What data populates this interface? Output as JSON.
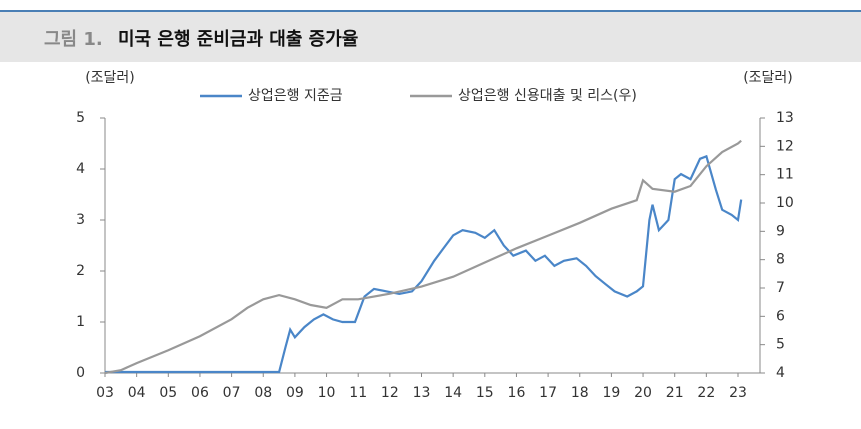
{
  "chart_data": {
    "type": "line",
    "figure_label": "그림 1.",
    "title": "미국 은행 준비금과 대출 증가율",
    "y_label": "(조달러)",
    "y2_label": "(조달러)",
    "xlim": [
      3,
      23
    ],
    "xticks": [
      {
        "value": 3,
        "label": "03"
      },
      {
        "value": 4,
        "label": "04"
      },
      {
        "value": 5,
        "label": "05"
      },
      {
        "value": 6,
        "label": "06"
      },
      {
        "value": 7,
        "label": "07"
      },
      {
        "value": 8,
        "label": "08"
      },
      {
        "value": 9,
        "label": "09"
      },
      10,
      11,
      12,
      13,
      14,
      15,
      16,
      17,
      18,
      19,
      20,
      21,
      22,
      23
    ],
    "ylim": [
      0,
      5
    ],
    "yticks": [
      0,
      1,
      2,
      3,
      4,
      5
    ],
    "y2lim": [
      4,
      13
    ],
    "y2ticks": [
      4,
      5,
      6,
      7,
      8,
      9,
      10,
      11,
      12,
      13
    ],
    "series": [
      {
        "name": "상업은행 지준금",
        "color": "#4a86c8",
        "x": [
          3,
          5,
          7,
          8.5,
          8.7,
          8.85,
          9.0,
          9.3,
          9.6,
          9.9,
          10.2,
          10.5,
          10.9,
          11.2,
          11.5,
          11.9,
          12.3,
          12.7,
          13.0,
          13.4,
          13.7,
          14.0,
          14.3,
          14.7,
          15.0,
          15.3,
          15.6,
          15.9,
          16.3,
          16.6,
          16.9,
          17.2,
          17.5,
          17.9,
          18.2,
          18.5,
          18.8,
          19.1,
          19.5,
          19.8,
          20.0,
          20.2,
          20.3,
          20.5,
          20.8,
          21.0,
          21.2,
          21.5,
          21.8,
          22.0,
          22.3,
          22.5,
          22.8,
          23.0,
          23.1
        ],
        "values": [
          0.02,
          0.02,
          0.02,
          0.02,
          0.5,
          0.85,
          0.7,
          0.9,
          1.05,
          1.15,
          1.05,
          1.0,
          1.0,
          1.5,
          1.65,
          1.6,
          1.55,
          1.6,
          1.8,
          2.2,
          2.45,
          2.7,
          2.8,
          2.75,
          2.65,
          2.8,
          2.5,
          2.3,
          2.4,
          2.2,
          2.3,
          2.1,
          2.2,
          2.25,
          2.1,
          1.9,
          1.75,
          1.6,
          1.5,
          1.6,
          1.7,
          3.0,
          3.3,
          2.8,
          3.0,
          3.8,
          3.9,
          3.8,
          4.2,
          4.25,
          3.6,
          3.2,
          3.1,
          3.0,
          3.4
        ]
      },
      {
        "name": "상업은행 신용대출 및 리스(우)",
        "color": "#999999",
        "axis": "y2",
        "x": [
          3,
          3.5,
          4,
          5,
          6,
          7,
          7.5,
          8,
          8.5,
          9,
          9.5,
          10,
          10.5,
          11,
          12,
          13,
          14,
          15,
          16,
          17,
          18,
          19,
          19.8,
          20,
          20.3,
          21,
          21.5,
          22,
          22.5,
          23,
          23.1
        ],
        "values": [
          4.0,
          4.1,
          4.35,
          4.8,
          5.3,
          5.9,
          6.3,
          6.6,
          6.75,
          6.6,
          6.4,
          6.3,
          6.6,
          6.6,
          6.8,
          7.05,
          7.4,
          7.9,
          8.4,
          8.85,
          9.3,
          9.8,
          10.1,
          10.8,
          10.5,
          10.4,
          10.6,
          11.3,
          11.8,
          12.1,
          12.2
        ]
      }
    ]
  }
}
